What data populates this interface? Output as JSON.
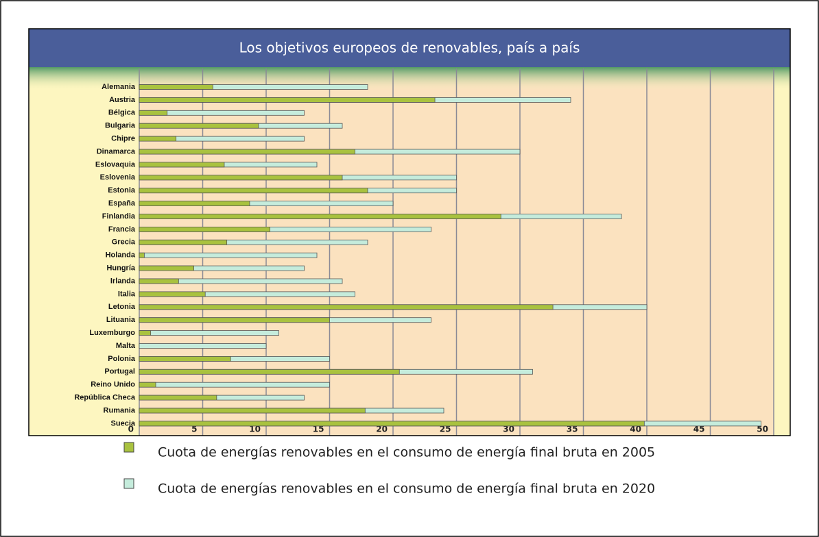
{
  "chart_data": {
    "type": "bar",
    "title": "Los objetivos europeos de renovables, país a país",
    "categories": [
      "Alemania",
      "Austria",
      "Bélgica",
      "Bulgaria",
      "Chipre",
      "Dinamarca",
      "Eslovaquia",
      "Eslovenia",
      "Estonia",
      "España",
      "Finlandia",
      "Francia",
      "Grecia",
      "Holanda",
      "Hungría",
      "Irlanda",
      "Italia",
      "Letonia",
      "Lituania",
      "Luxemburgo",
      "Malta",
      "Polonia",
      "Portugal",
      "Reino Unido",
      "República Checa",
      "Rumania",
      "Suecia"
    ],
    "series": [
      {
        "name": "Cuota de energías renovables en el consumo de energía final bruta en 2005",
        "color": "#a9c23f",
        "values": [
          5.8,
          23.3,
          2.2,
          9.4,
          2.9,
          17,
          6.7,
          16,
          18,
          8.7,
          28.5,
          10.3,
          6.9,
          0.4,
          4.3,
          3.1,
          5.2,
          32.6,
          15,
          0.9,
          0,
          7.2,
          20.5,
          1.3,
          6.1,
          17.8,
          39.8
        ]
      },
      {
        "name": "Cuota de energías renovables en el consumo de energía final bruta en 2020",
        "color": "#c5ecdc",
        "values": [
          18,
          34,
          13,
          16,
          13,
          30,
          14,
          25,
          25,
          20,
          38,
          23,
          18,
          14,
          13,
          16,
          17,
          40,
          23,
          11,
          10,
          15,
          31,
          15,
          13,
          24,
          49
        ]
      }
    ],
    "xlim": [
      0,
      50
    ],
    "xticks": [
      0,
      5,
      10,
      15,
      20,
      25,
      30,
      35,
      40,
      45,
      50
    ],
    "grid": true
  }
}
